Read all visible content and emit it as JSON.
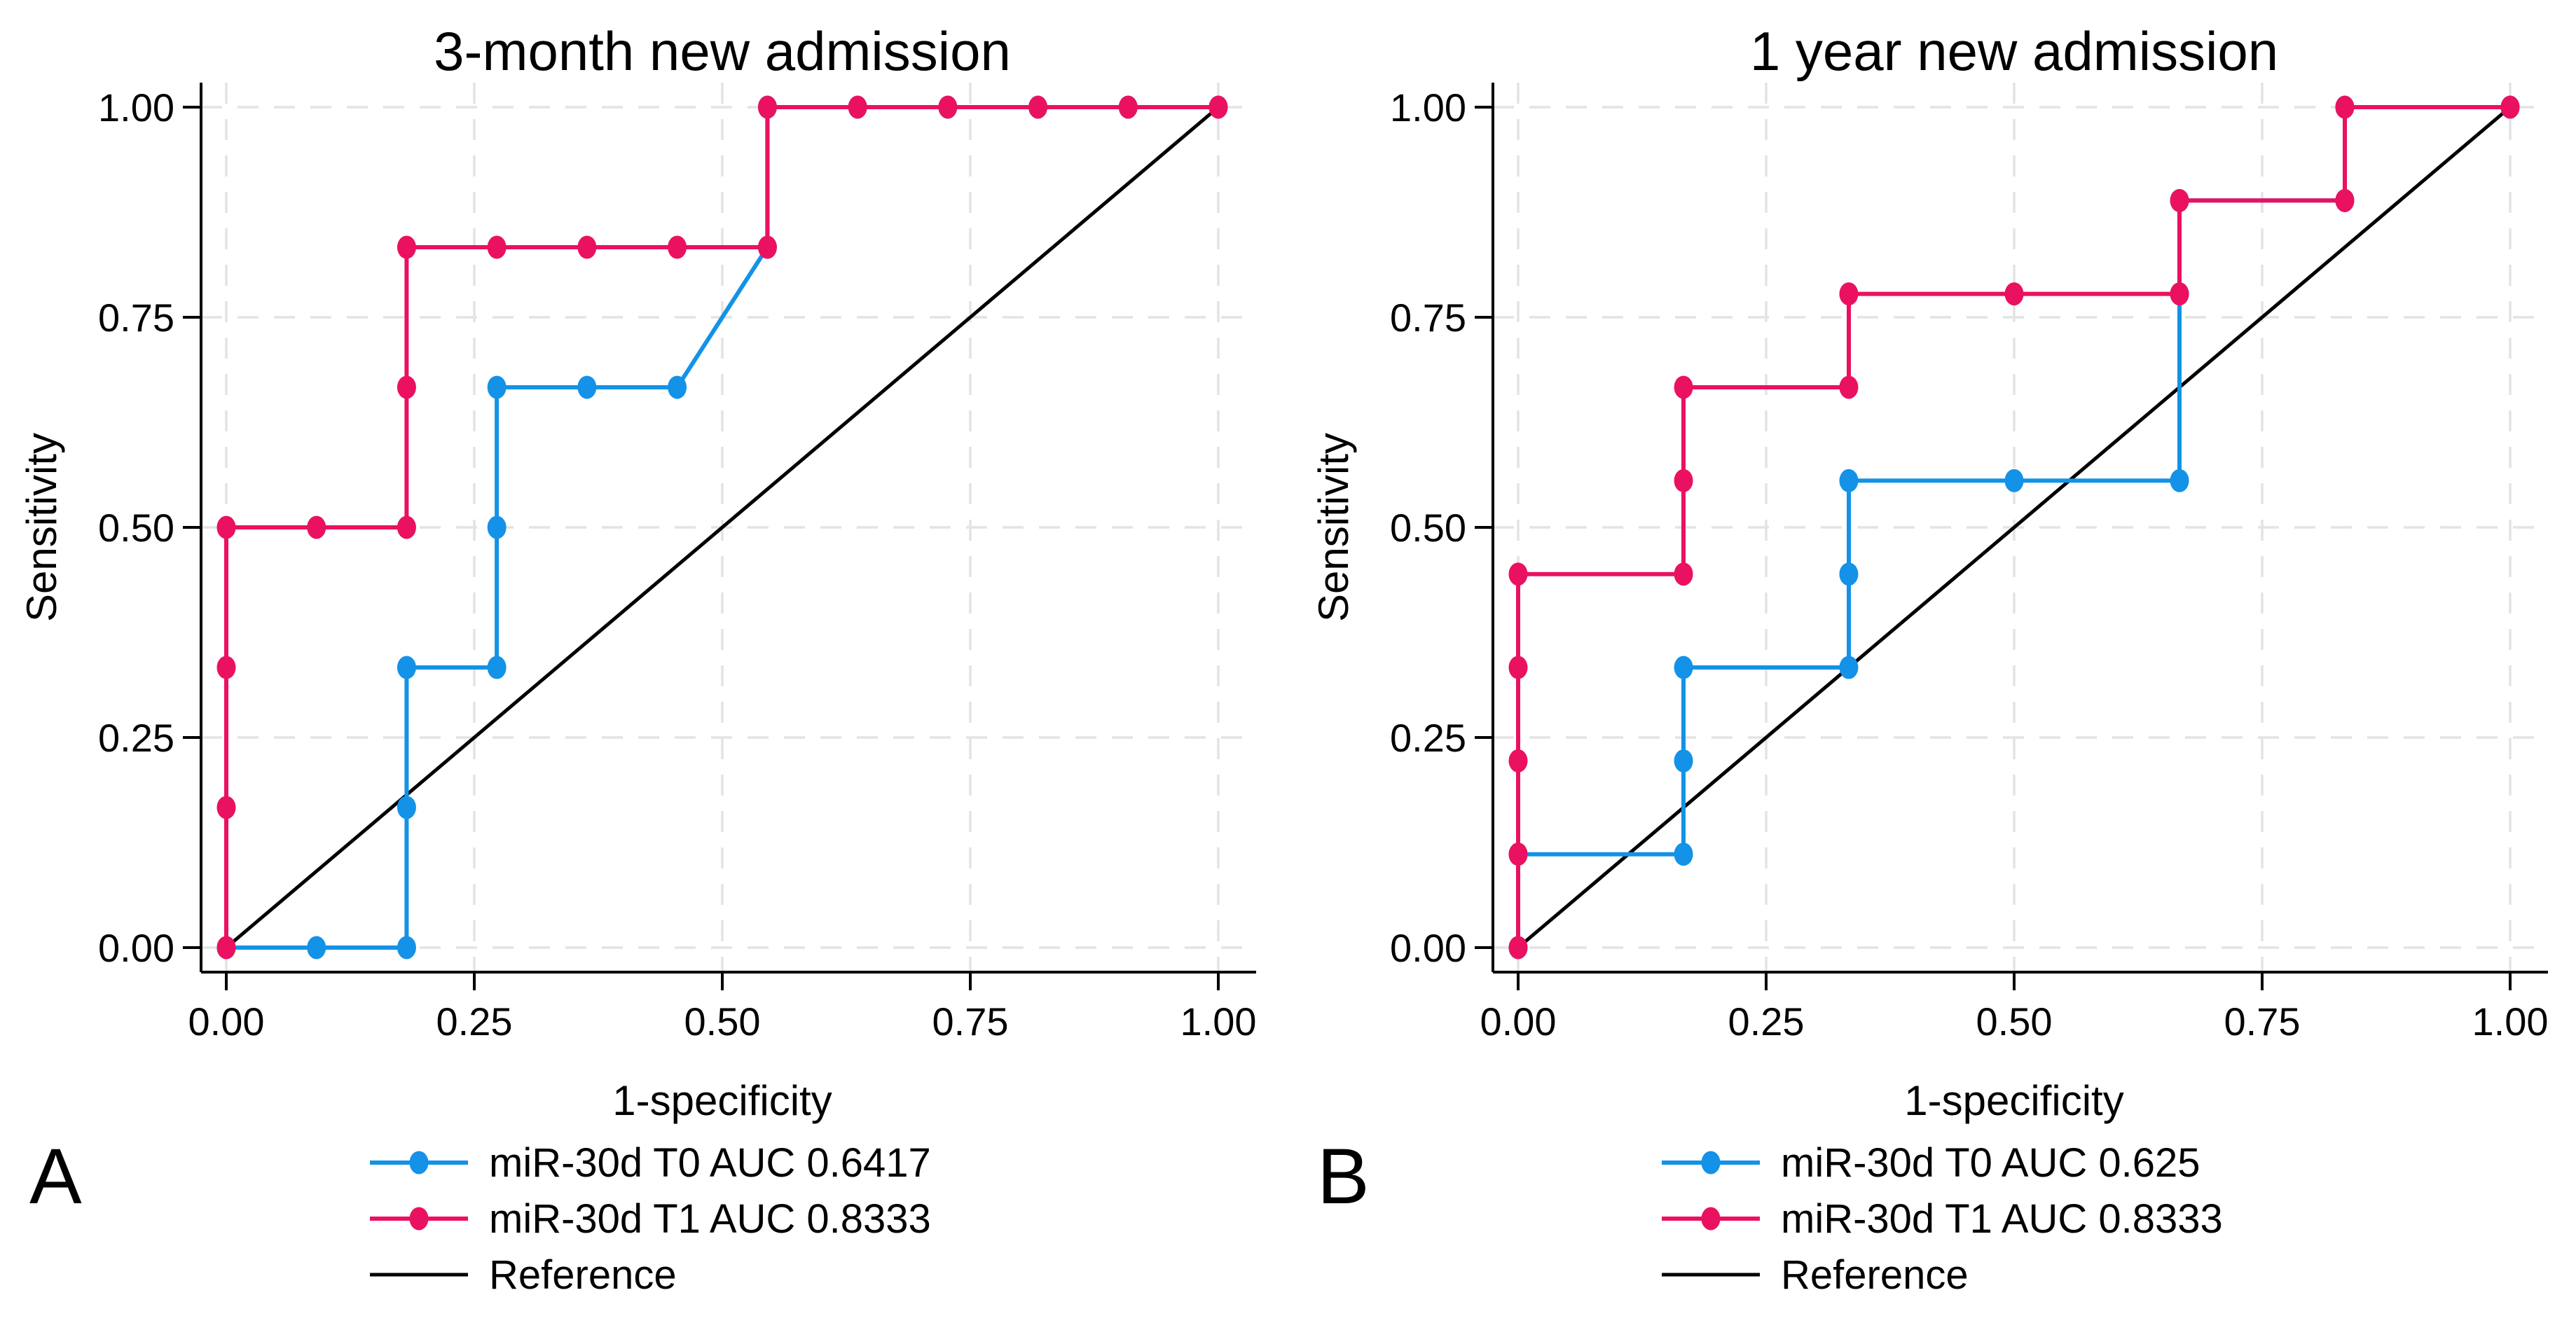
{
  "chart_data": [
    {
      "type": "line",
      "subtype": "roc-step-curve",
      "panel_label": "A",
      "title": "3-month new admission",
      "xlabel": "1-specificity",
      "ylabel": "Sensitivity",
      "xlim": [
        0,
        1
      ],
      "ylim": [
        0,
        1
      ],
      "xtick_values": [
        0,
        0.25,
        0.5,
        0.75,
        1
      ],
      "ytick_values": [
        0,
        0.25,
        0.5,
        0.75,
        1
      ],
      "xtick_labels": [
        "0.00",
        "0.25",
        "0.50",
        "0.75",
        "1.00"
      ],
      "ytick_labels": [
        "0.00",
        "0.25",
        "0.50",
        "0.75",
        "1.00"
      ],
      "grid": "dashed-both-axes",
      "grid_color": "#e3e3e3",
      "legend_position": "below-plot-left",
      "series": [
        {
          "name": "miR-30d T0 AUC 0.6417",
          "color": "#1392e8",
          "marker": "circle",
          "x": [
            0,
            0.0909,
            0.1818,
            0.1818,
            0.1818,
            0.2727,
            0.2727,
            0.2727,
            0.3636,
            0.4545,
            0.5455,
            0.5455,
            0.6364,
            0.7273,
            0.8182,
            0.9091,
            1
          ],
          "y": [
            0,
            0,
            0,
            0.1667,
            0.3333,
            0.3333,
            0.5,
            0.6667,
            0.6667,
            0.6667,
            0.8333,
            1,
            1,
            1,
            1,
            1,
            1
          ]
        },
        {
          "name": "miR-30d T1 AUC 0.8333",
          "color": "#ea1160",
          "marker": "circle",
          "x": [
            0,
            0,
            0,
            0,
            0.0909,
            0.1818,
            0.1818,
            0.1818,
            0.2727,
            0.3636,
            0.4545,
            0.5455,
            0.5455,
            0.6364,
            0.7273,
            0.8182,
            0.9091,
            1
          ],
          "y": [
            0,
            0.1667,
            0.3333,
            0.5,
            0.5,
            0.5,
            0.6667,
            0.8333,
            0.8333,
            0.8333,
            0.8333,
            0.8333,
            1,
            1,
            1,
            1,
            1,
            1
          ]
        },
        {
          "name": "Reference",
          "color": "#000000",
          "marker": "none",
          "x": [
            0,
            1
          ],
          "y": [
            0,
            1
          ]
        }
      ]
    },
    {
      "type": "line",
      "subtype": "roc-step-curve",
      "panel_label": "B",
      "title": "1 year new admission",
      "xlabel": "1-specificity",
      "ylabel": "Sensitivity",
      "xlim": [
        0,
        1
      ],
      "ylim": [
        0,
        1
      ],
      "xtick_values": [
        0,
        0.25,
        0.5,
        0.75,
        1
      ],
      "ytick_values": [
        0,
        0.25,
        0.5,
        0.75,
        1
      ],
      "xtick_labels": [
        "0.00",
        "0.25",
        "0.50",
        "0.75",
        "1.00"
      ],
      "ytick_labels": [
        "0.00",
        "0.25",
        "0.50",
        "0.75",
        "1.00"
      ],
      "grid": "dashed-both-axes",
      "grid_color": "#e3e3e3",
      "legend_position": "below-plot-left",
      "series": [
        {
          "name": "miR-30d T0 AUC 0.625",
          "color": "#1392e8",
          "marker": "circle",
          "x": [
            0,
            0,
            0.1667,
            0.1667,
            0.1667,
            0.3333,
            0.3333,
            0.3333,
            0.5,
            0.6667,
            0.6667,
            0.6667,
            0.8333,
            0.8333,
            1
          ],
          "y": [
            0,
            0.1111,
            0.1111,
            0.2222,
            0.3333,
            0.3333,
            0.4444,
            0.5556,
            0.5556,
            0.5556,
            0.7778,
            0.8889,
            0.8889,
            1,
            1
          ]
        },
        {
          "name": "miR-30d T1 AUC 0.8333",
          "color": "#ea1160",
          "marker": "circle",
          "x": [
            0,
            0,
            0,
            0,
            0,
            0.1667,
            0.1667,
            0.1667,
            0.3333,
            0.3333,
            0.5,
            0.6667,
            0.6667,
            0.8333,
            0.8333,
            1
          ],
          "y": [
            0,
            0.1111,
            0.2222,
            0.3333,
            0.4444,
            0.4444,
            0.5556,
            0.6667,
            0.6667,
            0.7778,
            0.7778,
            0.7778,
            0.8889,
            0.8889,
            1,
            1
          ]
        },
        {
          "name": "Reference",
          "color": "#000000",
          "marker": "none",
          "x": [
            0,
            1
          ],
          "y": [
            0,
            1
          ]
        }
      ]
    }
  ]
}
